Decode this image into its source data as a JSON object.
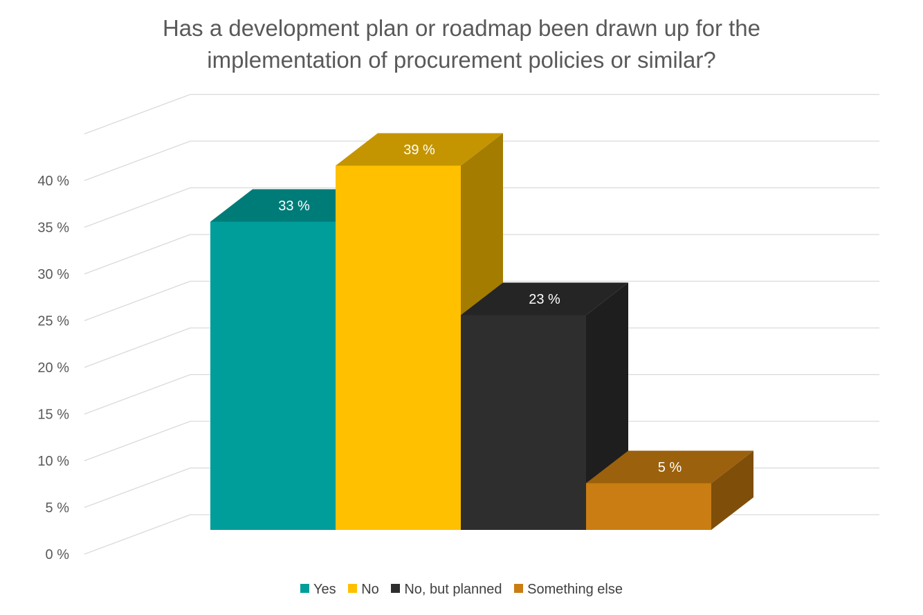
{
  "chart_data": {
    "type": "bar",
    "title_lines": [
      "Has a development plan or roadmap been drawn up for the",
      "implementation of procurement policies or similar?"
    ],
    "categories": [
      "Yes",
      "No",
      "No, but planned",
      "Something else"
    ],
    "values": [
      33,
      39,
      23,
      5
    ],
    "data_labels": [
      "33 %",
      "39 %",
      "23 %",
      "5 %"
    ],
    "y_ticks": [
      "0 %",
      "5 %",
      "10 %",
      "15 %",
      "20 %",
      "25 %",
      "30 %",
      "35 %",
      "40 %"
    ],
    "ylim": [
      0,
      45
    ],
    "grid": true,
    "style": "3d-clustered-column",
    "legend_position": "bottom",
    "colors": {
      "Yes": "#009e9b",
      "No": "#ffc000",
      "No, but planned": "#2e2e2e",
      "Something else": "#c97d12"
    }
  }
}
